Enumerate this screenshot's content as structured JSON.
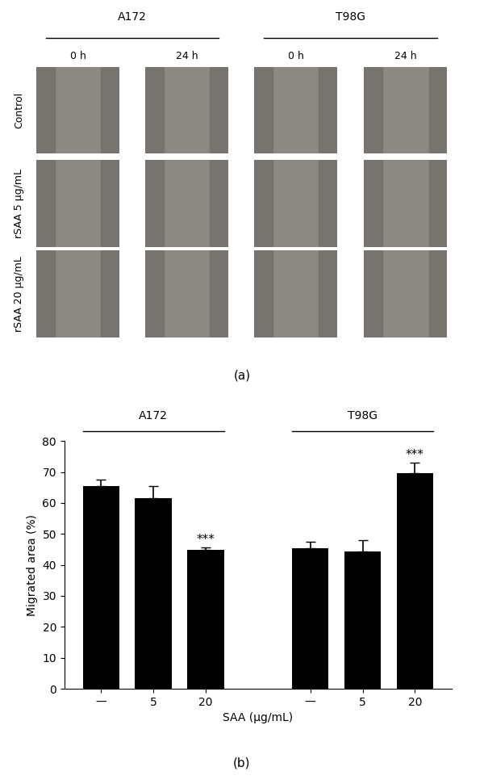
{
  "image_panel": {
    "label": "(a)",
    "cell_lines": [
      "A172",
      "T98G"
    ],
    "times": [
      "0 h",
      "24 h"
    ],
    "conditions": [
      "Control",
      "rSAA 5 μg/mL",
      "rSAA 20 μg/mL"
    ]
  },
  "chart_data": {
    "type": "bar",
    "label": "(b)",
    "x_label": "SAA (μg/mL)",
    "y_label": "Migrated area (%)",
    "color": "#000000",
    "ylim": [
      0,
      80
    ],
    "yticks": [
      0,
      10,
      20,
      30,
      40,
      50,
      60,
      70,
      80
    ],
    "groups": [
      {
        "name": "A172",
        "categories": [
          "—",
          "5",
          "20"
        ],
        "values": [
          65.5,
          61.5,
          44.8
        ],
        "errors": [
          2.0,
          4.0,
          0.8
        ],
        "annotations": [
          null,
          null,
          "***"
        ]
      },
      {
        "name": "T98G",
        "categories": [
          "—",
          "5",
          "20"
        ],
        "values": [
          45.5,
          44.2,
          69.5
        ],
        "errors": [
          2.0,
          3.8,
          3.5
        ],
        "annotations": [
          null,
          null,
          "***"
        ]
      }
    ]
  }
}
